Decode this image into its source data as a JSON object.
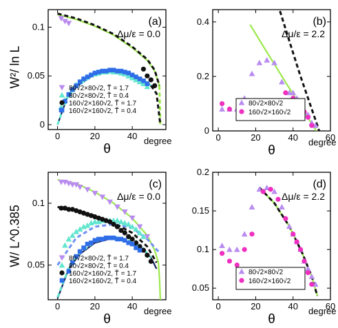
{
  "colors": {
    "violet": "#b98cf0",
    "cyan": "#63e6cf",
    "black": "#111111",
    "blue": "#2f6ee8",
    "magenta": "#ee2fbf",
    "green": "#9be84a",
    "dashblue": "#6f8ff5",
    "navy": "#16205c"
  },
  "y_labels": {
    "top": "W²/ ln L",
    "bottom": "W/ L^0.385"
  },
  "chart_data": [
    {
      "panel_label": "(a)",
      "type": "scatter",
      "annotation": "Δμ/ε = 0.0",
      "xlabel": "θ",
      "xunit": "degree",
      "xlim": [
        -5,
        58
      ],
      "ylim": [
        -0.005,
        0.118
      ],
      "xticks": [
        0,
        20,
        40,
        60
      ],
      "yticks": [
        0,
        0.05,
        0.1
      ],
      "ytick_labels": [
        "0",
        "0.05",
        "0.1"
      ],
      "legend": [
        "80√2×80√2, T̃ = 1.7",
        "80√2×80√2, T̃ = 0.4",
        "160√2×160√2, T̃ = 1.7",
        "160√2×160√2, T̃ = 0.4"
      ],
      "legend_position": "bottom-left",
      "series": [
        {
          "name": "80√2×80√2, T̃ = 1.7",
          "marker": "tri-down",
          "color": "violet",
          "x": [
            2,
            4,
            6
          ],
          "y": [
            0.109,
            0.106,
            0.104
          ]
        },
        {
          "name": "80√2×80√2, T̃ = 0.4",
          "marker": "tri-up",
          "color": "cyan",
          "x": [
            2,
            4,
            6,
            8,
            10,
            12,
            14,
            16,
            18,
            20,
            22,
            24,
            26,
            28,
            30,
            32,
            34,
            36,
            38,
            40,
            42,
            44,
            46,
            48
          ],
          "y": [
            0.018,
            0.025,
            0.031,
            0.036,
            0.041,
            0.044,
            0.047,
            0.049,
            0.051,
            0.052,
            0.053,
            0.054,
            0.054,
            0.055,
            0.054,
            0.054,
            0.053,
            0.052,
            0.05,
            0.048,
            0.046,
            0.044,
            0.042,
            0.039
          ]
        },
        {
          "name": "160√2×160√2, T̃ = 1.7",
          "marker": "circle",
          "color": "black",
          "x": [
            46,
            48,
            50,
            52
          ],
          "y": [
            0.057,
            0.05,
            0.046,
            0.04
          ]
        },
        {
          "name": "160√2×160√2, T̃ = 0.4",
          "marker": "square",
          "color": "blue",
          "x": [
            2,
            4,
            6,
            8,
            10,
            12,
            14,
            16,
            18,
            20,
            22,
            24,
            26,
            28,
            30,
            32,
            34,
            36,
            38,
            40,
            42,
            44,
            46,
            48
          ],
          "y": [
            0.015,
            0.024,
            0.031,
            0.036,
            0.04,
            0.044,
            0.047,
            0.049,
            0.051,
            0.053,
            0.054,
            0.055,
            0.055,
            0.056,
            0.056,
            0.055,
            0.055,
            0.054,
            0.053,
            0.051,
            0.049,
            0.047,
            0.045,
            0.042
          ]
        }
      ],
      "curves": [
        {
          "style": "solid",
          "color": "green",
          "x": [
            0,
            10,
            20,
            30,
            40,
            48,
            52,
            54.5
          ],
          "y": [
            0.113,
            0.108,
            0.101,
            0.092,
            0.079,
            0.066,
            0.055,
            0.04
          ]
        },
        {
          "style": "dashed",
          "color": "black",
          "x": [
            0,
            10,
            20,
            30,
            40,
            48,
            52,
            54.5
          ],
          "y": [
            0.114,
            0.109,
            0.102,
            0.093,
            0.08,
            0.067,
            0.056,
            0.04
          ]
        },
        {
          "style": "solid",
          "color": "navy",
          "x": [
            0,
            5,
            10,
            20,
            30,
            40,
            46,
            50
          ],
          "y": [
            0.0,
            0.027,
            0.039,
            0.052,
            0.056,
            0.052,
            0.046,
            0.04
          ]
        },
        {
          "style": "dashed",
          "color": "cyan",
          "x": [
            0,
            5,
            10,
            20,
            30,
            40,
            46,
            50
          ],
          "y": [
            0.0,
            0.027,
            0.039,
            0.052,
            0.056,
            0.052,
            0.046,
            0.04
          ]
        },
        {
          "style": "dashed",
          "color": "green",
          "x": [
            54.5,
            54.8,
            55
          ],
          "y": [
            0.04,
            0.02,
            0.0
          ]
        },
        {
          "style": "dashed",
          "color": "black",
          "x": [
            50,
            53,
            55
          ],
          "y": [
            0.04,
            0.032,
            0.0
          ]
        }
      ]
    },
    {
      "panel_label": "(b)",
      "type": "scatter",
      "annotation": "Δμ/ε = 2.2",
      "xlabel": "θ",
      "xunit": "degree",
      "xlim": [
        -3,
        60
      ],
      "ylim": [
        0,
        0.445
      ],
      "xticks": [
        0,
        20,
        40,
        60
      ],
      "yticks": [
        0,
        0.2,
        0.4
      ],
      "ytick_labels": [
        "0",
        "0.2",
        "0.4"
      ],
      "legend": [
        "80√2×80√2",
        "160√2×160√2"
      ],
      "legend_position": "bottom-center",
      "series": [
        {
          "name": "80√2×80√2",
          "marker": "tri-up",
          "color": "violet",
          "x": [
            2,
            6,
            10,
            14,
            18,
            22,
            26,
            30,
            34,
            38,
            40,
            42,
            44,
            46,
            48,
            50,
            52
          ],
          "y": [
            0.08,
            0.08,
            0.08,
            0.12,
            0.21,
            0.25,
            0.26,
            0.25,
            0.18,
            0.14,
            0.14,
            0.12,
            0.09,
            0.07,
            0.06,
            0.03,
            0.02
          ]
        },
        {
          "name": "160√2×160√2",
          "marker": "circle",
          "color": "magenta",
          "x": [
            2,
            6,
            14,
            18,
            24,
            28,
            36,
            40,
            44,
            46,
            48,
            50
          ],
          "y": [
            0.1,
            0.08,
            0.1,
            0.1,
            0.1,
            0.11,
            0.14,
            0.12,
            0.1,
            0.07,
            0.05,
            0.02
          ]
        }
      ],
      "curves": [
        {
          "style": "solid",
          "color": "green",
          "x": [
            17,
            25,
            35,
            45,
            52.5
          ],
          "y": [
            0.39,
            0.3,
            0.19,
            0.08,
            0.0
          ]
        },
        {
          "style": "dashed",
          "color": "black",
          "x": [
            33,
            38,
            44,
            50,
            54
          ],
          "y": [
            0.44,
            0.33,
            0.2,
            0.08,
            0.0
          ]
        }
      ]
    },
    {
      "panel_label": "(c)",
      "type": "scatter",
      "annotation": "Δμ/ε = 0.0",
      "xlabel": "θ",
      "xunit": "degree",
      "xlim": [
        -5,
        58
      ],
      "ylim": [
        0.022,
        0.125
      ],
      "xticks": [
        0,
        20,
        40,
        60
      ],
      "yticks": [
        0.05,
        0.1
      ],
      "ytick_labels": [
        "0.05",
        "0.1"
      ],
      "legend": [
        "80√2×80√2, T̃ = 1.7",
        "80√2×80√2, T̃ = 0.4",
        "160√2×160√2, T̃ = 1.7",
        "160√2×160√2, T̃ = 0.4"
      ],
      "legend_position": "bottom-left",
      "series": [
        {
          "name": "80√2×80√2, T̃ = 1.7",
          "marker": "tri-down",
          "color": "violet",
          "x": [
            2,
            4,
            6,
            8,
            10,
            12,
            16,
            20,
            24,
            28,
            32,
            36,
            40,
            44,
            48
          ],
          "y": [
            0.117,
            0.117,
            0.116,
            0.115,
            0.115,
            0.113,
            0.111,
            0.108,
            0.105,
            0.101,
            0.097,
            0.093,
            0.088,
            0.081,
            0.073
          ]
        },
        {
          "name": "80√2×80√2, T̃ = 0.4",
          "marker": "tri-up",
          "color": "cyan",
          "x": [
            4,
            6,
            8,
            10,
            12,
            14,
            16,
            18,
            20,
            22,
            24,
            26,
            28,
            30,
            32,
            34,
            36,
            38,
            40,
            42,
            44,
            46
          ],
          "y": [
            0.066,
            0.071,
            0.074,
            0.077,
            0.079,
            0.081,
            0.082,
            0.084,
            0.085,
            0.085,
            0.086,
            0.086,
            0.086,
            0.086,
            0.086,
            0.085,
            0.084,
            0.083,
            0.081,
            0.079,
            0.076,
            0.073
          ]
        },
        {
          "name": "160√2×160√2, T̃ = 1.7",
          "marker": "circle",
          "color": "black",
          "x": [
            2,
            4,
            6,
            8,
            10,
            12,
            14,
            16,
            18,
            20,
            22,
            24,
            26,
            28,
            30,
            32,
            34,
            36,
            38,
            40,
            42,
            44,
            46,
            48,
            50
          ],
          "y": [
            0.096,
            0.096,
            0.095,
            0.095,
            0.094,
            0.093,
            0.092,
            0.091,
            0.09,
            0.089,
            0.088,
            0.087,
            0.086,
            0.085,
            0.083,
            0.081,
            0.078,
            0.076,
            0.073,
            0.071,
            0.068,
            0.065,
            0.062,
            0.058,
            0.053
          ]
        },
        {
          "name": "160√2×160√2, T̃ = 0.4",
          "marker": "square",
          "color": "blue",
          "x": [
            6,
            8,
            10,
            12,
            14,
            16,
            18,
            20,
            22,
            24,
            26,
            28,
            30,
            32,
            34,
            36,
            38,
            40,
            42,
            44
          ],
          "y": [
            0.045,
            0.052,
            0.057,
            0.061,
            0.064,
            0.067,
            0.068,
            0.07,
            0.071,
            0.071,
            0.072,
            0.072,
            0.072,
            0.071,
            0.071,
            0.07,
            0.068,
            0.067,
            0.064,
            0.062
          ]
        }
      ],
      "curves": [
        {
          "style": "solid",
          "color": "green",
          "x": [
            0,
            10,
            20,
            30,
            40,
            48,
            52,
            54
          ],
          "y": [
            0.119,
            0.116,
            0.109,
            0.1,
            0.088,
            0.074,
            0.062,
            0.052
          ]
        },
        {
          "style": "dashed",
          "color": "dashblue",
          "x": [
            0,
            10,
            20,
            30,
            40,
            48,
            54
          ],
          "y": [
            0.05,
            0.072,
            0.081,
            0.083,
            0.08,
            0.071,
            0.061
          ]
        },
        {
          "style": "dashed",
          "color": "black",
          "x": [
            0,
            10,
            20,
            30,
            40,
            48,
            53
          ],
          "y": [
            0.097,
            0.094,
            0.09,
            0.084,
            0.076,
            0.065,
            0.052
          ]
        },
        {
          "style": "solid",
          "color": "navy",
          "x": [
            0,
            6,
            12,
            20,
            30,
            40,
            46,
            50,
            53
          ],
          "y": [
            0.023,
            0.047,
            0.059,
            0.068,
            0.072,
            0.068,
            0.062,
            0.056,
            0.047
          ]
        },
        {
          "style": "dashed",
          "color": "cyan",
          "x": [
            0,
            6,
            12,
            20,
            30,
            40,
            46,
            50
          ],
          "y": [
            0.024,
            0.048,
            0.06,
            0.069,
            0.073,
            0.069,
            0.063,
            0.056
          ]
        },
        {
          "style": "solid",
          "color": "green",
          "x": [
            54,
            54.6,
            55
          ],
          "y": [
            0.052,
            0.038,
            0.022
          ]
        }
      ]
    },
    {
      "panel_label": "(d)",
      "type": "scatter",
      "annotation": "Δμ/ε = 2.2",
      "xlabel": "θ",
      "xunit": "degree",
      "xlim": [
        -3,
        60
      ],
      "ylim": [
        0.035,
        0.2
      ],
      "xticks": [
        0,
        20,
        40,
        60
      ],
      "yticks": [
        0.05,
        0.1,
        0.15,
        0.2
      ],
      "ytick_labels": [
        "0.05",
        "0.1",
        "0.15",
        "0.2"
      ],
      "legend": [
        "80√2×80√2",
        "160√2×160√2"
      ],
      "legend_position": "bottom-center",
      "series": [
        {
          "name": "80√2×80√2",
          "marker": "tri-up",
          "color": "violet",
          "x": [
            2,
            6,
            10,
            14,
            18,
            22,
            26,
            30,
            34,
            38,
            40,
            42,
            44,
            46,
            48,
            50,
            52
          ],
          "y": [
            0.105,
            0.1,
            0.1,
            0.12,
            0.155,
            0.178,
            0.18,
            0.175,
            0.155,
            0.13,
            0.12,
            0.11,
            0.1,
            0.085,
            0.075,
            0.065,
            0.055
          ]
        },
        {
          "name": "160√2×160√2",
          "marker": "circle",
          "color": "magenta",
          "x": [
            2,
            6,
            10,
            14,
            18,
            24,
            28,
            32,
            36,
            40,
            42,
            44,
            46,
            48,
            50
          ],
          "y": [
            0.095,
            0.085,
            0.08,
            0.1,
            0.12,
            0.175,
            0.178,
            0.165,
            0.14,
            0.12,
            0.11,
            0.1,
            0.085,
            0.07,
            0.055
          ]
        }
      ],
      "curves": [
        {
          "style": "solid",
          "color": "green",
          "x": [
            22,
            30,
            38,
            45,
            50,
            53
          ],
          "y": [
            0.18,
            0.16,
            0.13,
            0.095,
            0.065,
            0.04
          ]
        },
        {
          "style": "dashed",
          "color": "black",
          "x": [
            22,
            30,
            38,
            45,
            50,
            53
          ],
          "y": [
            0.18,
            0.16,
            0.13,
            0.095,
            0.065,
            0.04
          ]
        }
      ]
    }
  ]
}
